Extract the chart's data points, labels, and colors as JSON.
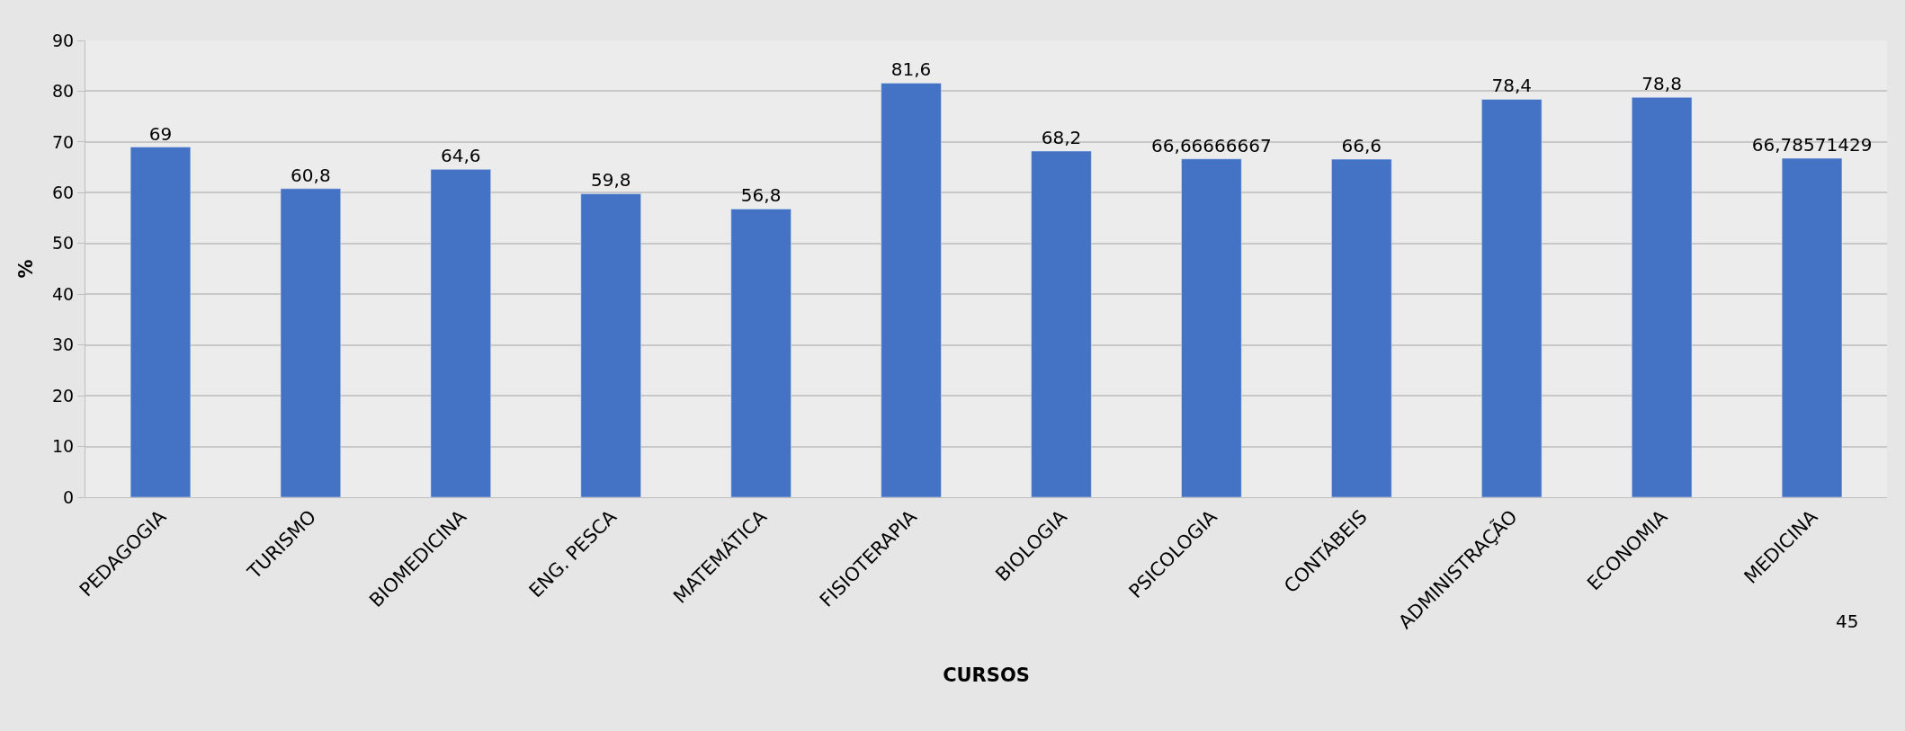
{
  "chart_data": {
    "type": "bar",
    "xlabel": "CURSOS",
    "ylabel": "%",
    "categories": [
      "PEDAGOGIA",
      "TURISMO",
      "BIOMEDICINA",
      "ENG. PESCA",
      "MATEMÁTICA",
      "FISIOTERAPIA",
      "BIOLOGIA",
      "PSICOLOGIA",
      "CONTÁBEIS",
      "ADMINISTRAÇÃO",
      "ECONOMIA",
      "MEDICINA"
    ],
    "values": [
      69,
      60.8,
      64.6,
      59.8,
      56.8,
      81.6,
      68.2,
      66.66666667,
      66.6,
      78.4,
      78.8,
      66.78571429
    ],
    "value_labels": [
      "69",
      "60,8",
      "64,6",
      "59,8",
      "56,8",
      "81,6",
      "68,2",
      "66,66666667",
      "66,6",
      "78,4",
      "78,8",
      "66,78571429"
    ],
    "color": "#4472c4",
    "ylim": [
      0,
      90
    ],
    "yticks": [
      0,
      10,
      20,
      30,
      40,
      50,
      60,
      70,
      80,
      90
    ],
    "grid": "y",
    "annotations": [
      "45"
    ]
  }
}
